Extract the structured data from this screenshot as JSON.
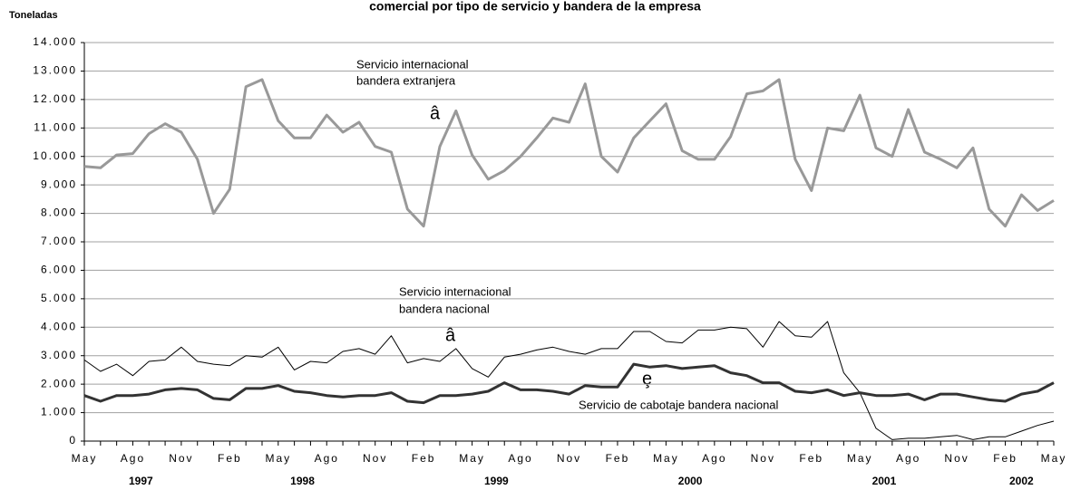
{
  "chart_data": {
    "type": "line",
    "title": "comercial por tipo de servicio y bandera de la empresa",
    "y_label": "Toneladas",
    "categories": [
      "May",
      null,
      null,
      "Ago",
      null,
      null,
      "Nov",
      null,
      null,
      "Feb",
      null,
      null,
      "May",
      null,
      null,
      "Ago",
      null,
      null,
      "Nov",
      null,
      null,
      "Feb",
      null,
      null,
      "May",
      null,
      null,
      "Ago",
      null,
      null,
      "Nov",
      null,
      null,
      "Feb",
      null,
      null,
      "May",
      null,
      null,
      "Ago",
      null,
      null,
      "Nov",
      null,
      null,
      "Feb",
      null,
      null,
      "May",
      null,
      null,
      "Ago",
      null,
      null,
      "Nov",
      null,
      null,
      "Feb",
      null,
      null,
      "May"
    ],
    "years": [
      "1997",
      "1998",
      "1999",
      "2000",
      "2001",
      "2002"
    ],
    "series": [
      {
        "name": "Servicio internacional bandera extranjera",
        "color": "#999999",
        "values": [
          9650,
          9600,
          10050,
          10100,
          10800,
          11150,
          10850,
          9900,
          8000,
          8850,
          12450,
          12700,
          11250,
          10650,
          10650,
          11450,
          10850,
          11200,
          10350,
          10150,
          8150,
          7550,
          10350,
          11600,
          10050,
          9200,
          9500,
          10000,
          10650,
          11350,
          11200,
          12550,
          10000,
          9450,
          10650,
          11250,
          11850,
          10200,
          9900,
          9900,
          10700,
          12200,
          12300,
          12700,
          9900,
          8800,
          11000,
          10900,
          12150,
          10300,
          10000,
          11650,
          10150,
          9900,
          9600,
          10300,
          8150,
          7550,
          8650,
          8100,
          8450
        ]
      },
      {
        "name": "Servicio internacional bandera nacional",
        "color": "#000000",
        "values": [
          2850,
          2450,
          2700,
          2300,
          2800,
          2850,
          3300,
          2800,
          2700,
          2650,
          3000,
          2950,
          3300,
          2500,
          2800,
          2750,
          3150,
          3250,
          3050,
          3700,
          2750,
          2900,
          2800,
          3250,
          2550,
          2250,
          2950,
          3050,
          3200,
          3300,
          3150,
          3050,
          3250,
          3250,
          3850,
          3850,
          3500,
          3450,
          3900,
          3900,
          4000,
          3950,
          3300,
          4200,
          3700,
          3650,
          4200,
          2400,
          1700,
          450,
          50,
          100,
          100,
          150,
          200,
          50,
          150,
          150,
          350,
          550,
          700
        ]
      },
      {
        "name": "Servicio de cabotaje bandera nacional",
        "color": "#333333",
        "values": [
          1600,
          1400,
          1600,
          1600,
          1650,
          1800,
          1850,
          1800,
          1500,
          1450,
          1850,
          1850,
          1950,
          1750,
          1700,
          1600,
          1550,
          1600,
          1600,
          1700,
          1400,
          1350,
          1600,
          1600,
          1650,
          1750,
          2050,
          1800,
          1800,
          1750,
          1650,
          1950,
          1900,
          1900,
          2700,
          2600,
          2650,
          2550,
          2600,
          2650,
          2400,
          2300,
          2050,
          2050,
          1750,
          1700,
          1800,
          1600,
          1700,
          1600,
          1600,
          1650,
          1450,
          1650,
          1650,
          1550,
          1450,
          1400,
          1650,
          1750,
          2050
        ]
      }
    ],
    "annotations": [
      "Servicio internacional",
      "bandera extranjera",
      "â",
      "Servicio internacional",
      "bandera nacional",
      "â",
      "ȩ",
      "Servicio de cabotaje bandera nacional"
    ],
    "ylim": [
      0,
      14000
    ],
    "yticks": [
      0,
      {
        "value": 1000,
        "label": "1.000"
      },
      {
        "value": 2000,
        "label": "2.000"
      },
      {
        "value": 3000,
        "label": "3.000"
      },
      {
        "value": 4000,
        "label": "4.000"
      },
      {
        "value": 5000,
        "label": "5.000"
      },
      {
        "value": 6000,
        "label": "6.000"
      },
      {
        "value": 7000,
        "label": "7.000"
      },
      {
        "value": 8000,
        "label": "8.000"
      },
      {
        "value": 9000,
        "label": "9.000"
      },
      {
        "value": 10000,
        "label": "10.000"
      },
      {
        "value": 11000,
        "label": "11.000"
      },
      {
        "value": 12000,
        "label": "12.000"
      },
      {
        "value": 13000,
        "label": "13.000"
      },
      {
        "value": 14000,
        "label": "14.000"
      }
    ],
    "grid": true
  }
}
